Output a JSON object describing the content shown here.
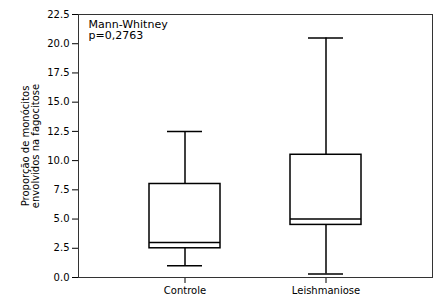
{
  "chart_data": {
    "type": "box",
    "categories": [
      "Controle",
      "Leishmaniose"
    ],
    "boxes": [
      {
        "whisker_low": 1.0,
        "q1": 2.5,
        "median": 3.0,
        "q3": 8.0,
        "whisker_high": 12.5
      },
      {
        "whisker_low": 0.3,
        "q1": 4.5,
        "median": 5.0,
        "q3": 10.5,
        "whisker_high": 20.5
      }
    ],
    "color": "#000000",
    "ylabel": "Proporção de monócitos\nenvolvidos na fagocitose",
    "annotation": "Mann-Whitney\np=0,2763",
    "ylim": [
      0.0,
      22.5
    ],
    "yticks": [
      {
        "value": 0.0,
        "label": "0.0"
      },
      {
        "value": 2.5,
        "label": "2.5"
      },
      {
        "value": 5.0,
        "label": "5.0"
      },
      {
        "value": 7.5,
        "label": "7.5"
      },
      {
        "value": 10.0,
        "label": "10.0"
      },
      {
        "value": 12.5,
        "label": "12.5"
      },
      {
        "value": 15.0,
        "label": "15.0"
      },
      {
        "value": 17.5,
        "label": "17.5"
      },
      {
        "value": 20.0,
        "label": "20.0"
      },
      {
        "value": 22.5,
        "label": "22.5"
      }
    ],
    "grid": false
  }
}
